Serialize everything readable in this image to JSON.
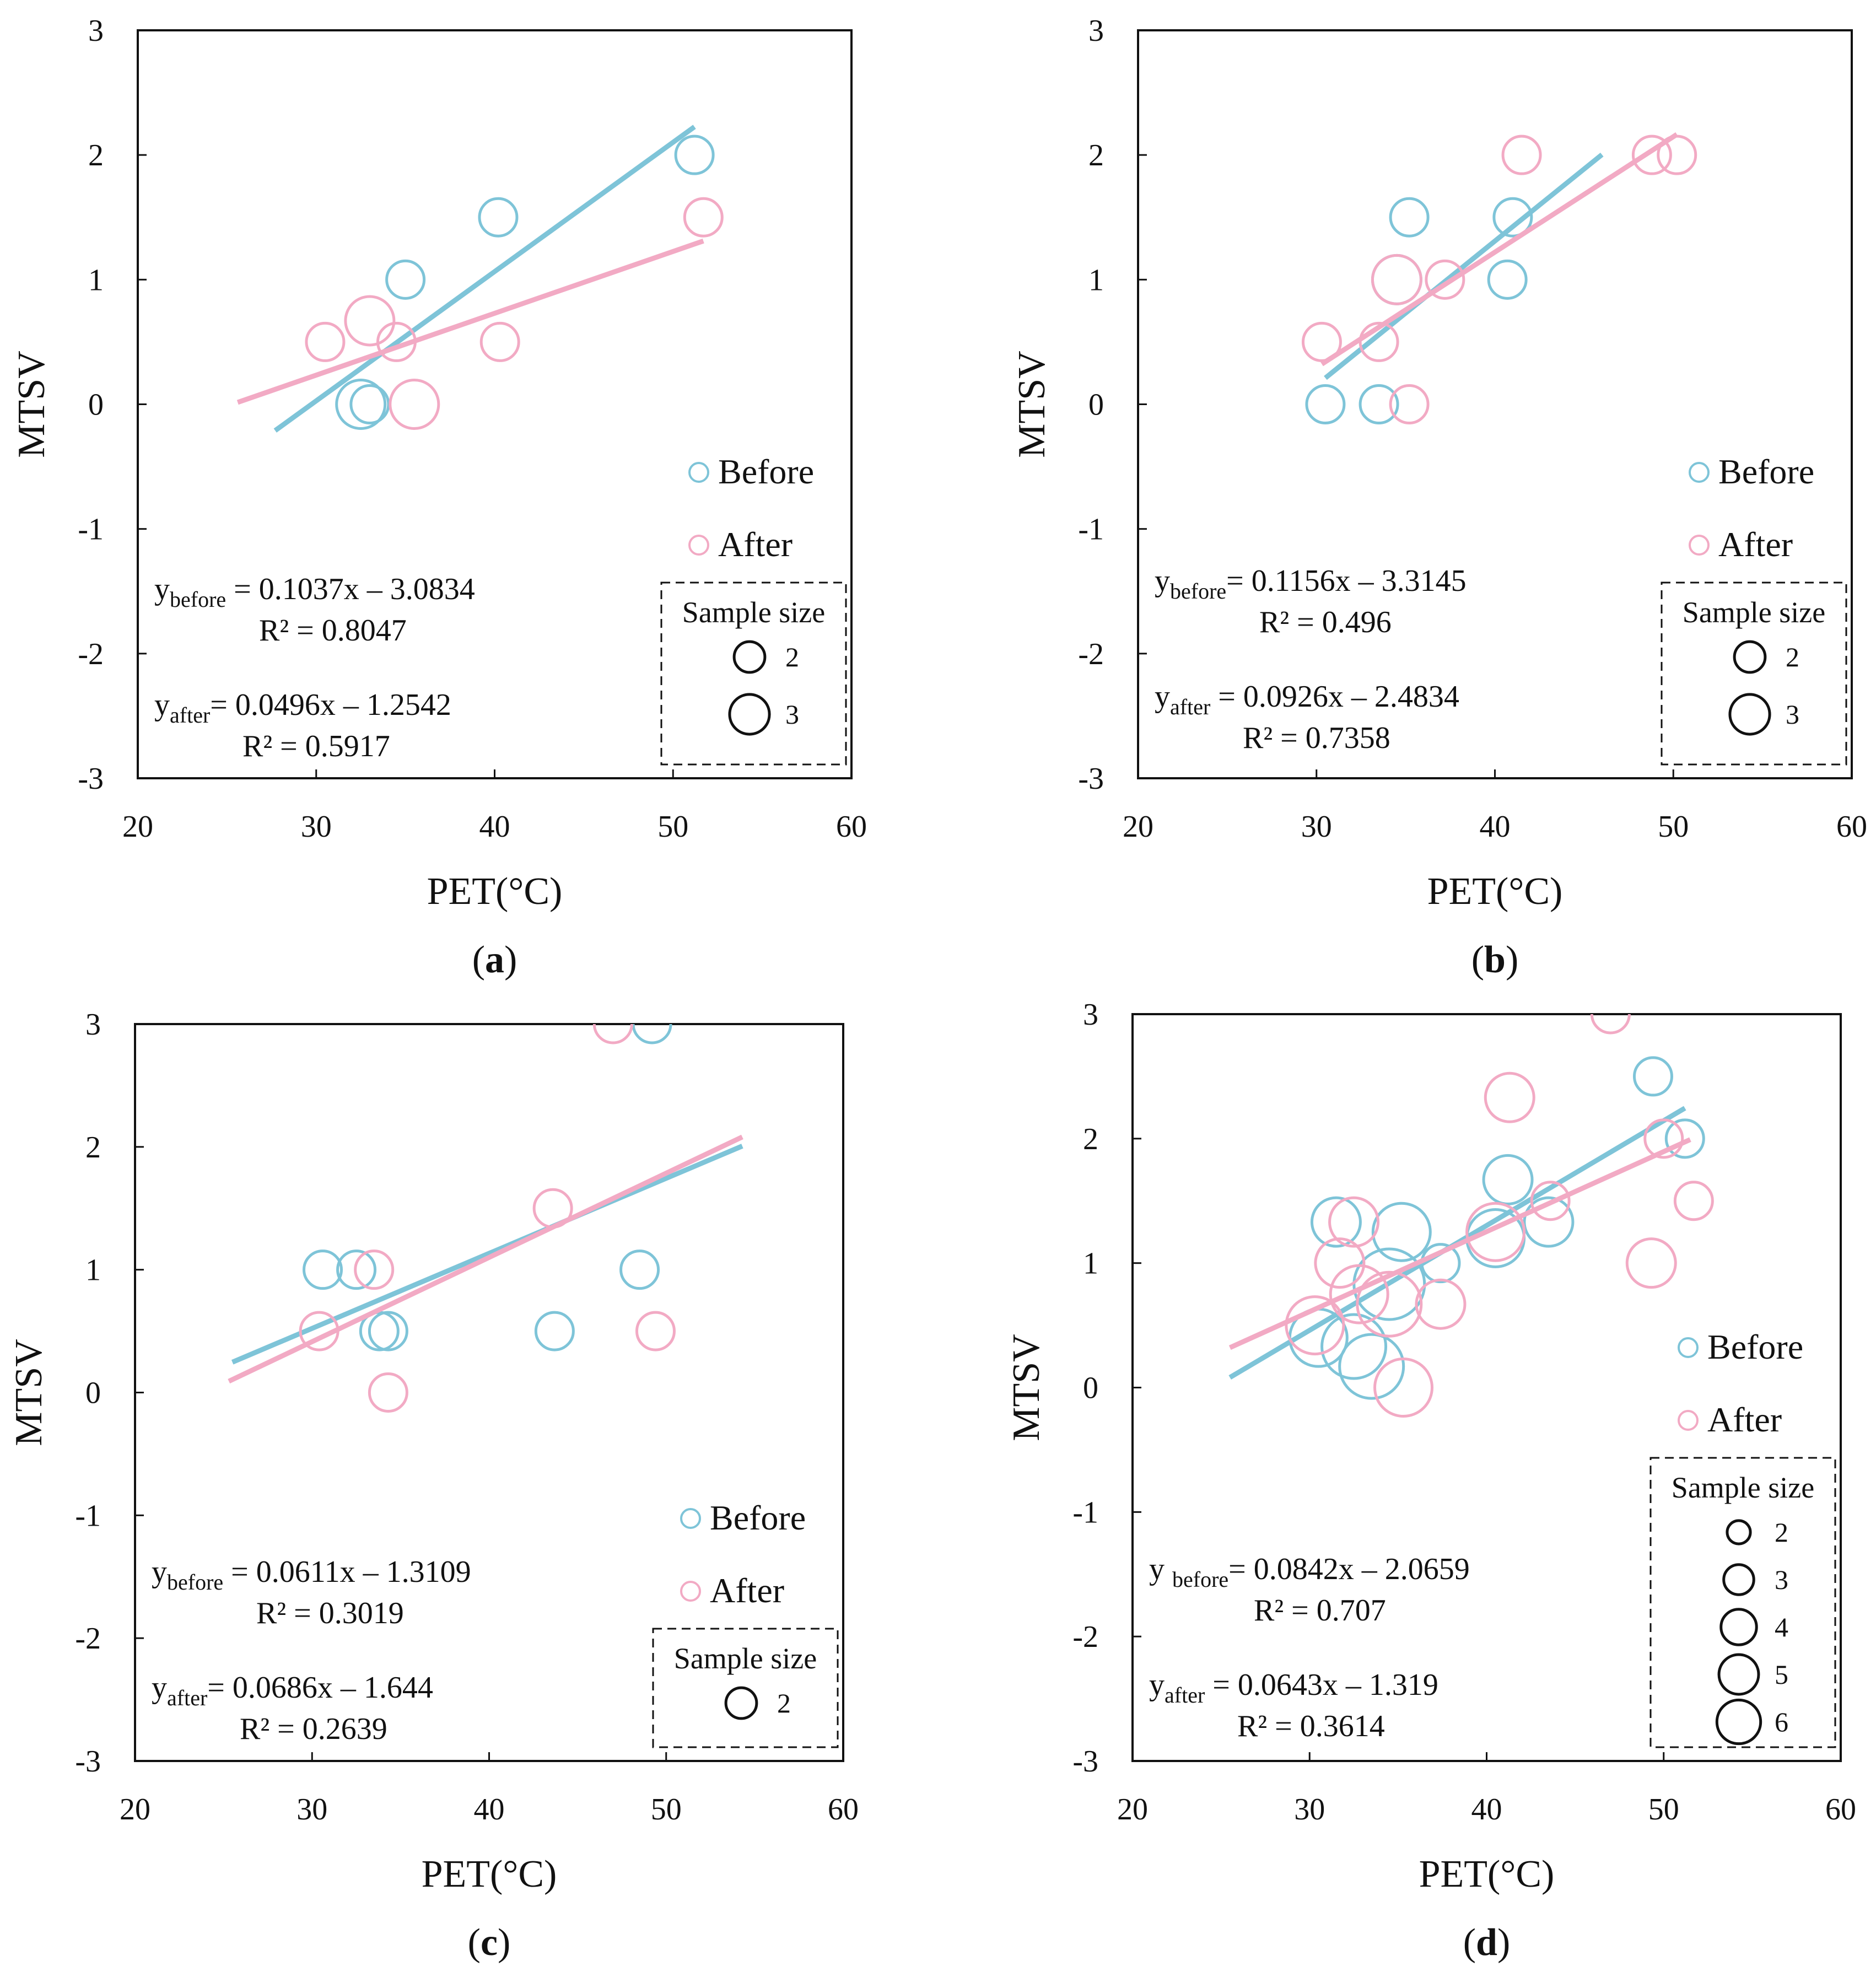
{
  "figure": {
    "panels": [
      {
        "id": "a",
        "label_open": "(",
        "label_letter": "a",
        "label_close": ")",
        "xlabel": "PET(°C)",
        "ylabel": "MTSV",
        "xlim": [
          20,
          60
        ],
        "ylim": [
          -3,
          3
        ],
        "xticks": [
          "20",
          "30",
          "40",
          "50",
          "60"
        ],
        "yticks": [
          "3",
          "2",
          "1",
          "0",
          "-1",
          "-2",
          "-3"
        ],
        "legend": {
          "before_label": "Before",
          "after_label": "After",
          "sample_size_title": "Sample size",
          "sizes": [
            "2",
            "3"
          ]
        },
        "equations": {
          "before_prefix": "y",
          "before_sub": "before",
          "before_rhs": " = 0.1037x – 3.0834",
          "before_r2": "R² = 0.8047",
          "after_prefix": "y",
          "after_sub": "after",
          "after_rhs": "= 0.0496x – 1.2542",
          "after_r2": "R² = 0.5917"
        }
      },
      {
        "id": "b",
        "label_open": "(",
        "label_letter": "b",
        "label_close": ")",
        "xlabel": "PET(°C)",
        "ylabel": "MTSV",
        "xlim": [
          20,
          60
        ],
        "ylim": [
          -3,
          3
        ],
        "xticks": [
          "20",
          "30",
          "40",
          "50",
          "60"
        ],
        "yticks": [
          "3",
          "2",
          "1",
          "0",
          "-1",
          "-2",
          "-3"
        ],
        "legend": {
          "before_label": "Before",
          "after_label": "After",
          "sample_size_title": "Sample size",
          "sizes": [
            "2",
            "3"
          ]
        },
        "equations": {
          "before_prefix": "y",
          "before_sub": "before",
          "before_rhs": "= 0.1156x – 3.3145",
          "before_r2": "R² = 0.496",
          "after_prefix": "y",
          "after_sub": "after",
          "after_rhs": " = 0.0926x – 2.4834",
          "after_r2": "R² = 0.7358"
        }
      },
      {
        "id": "c",
        "label_open": "(",
        "label_letter": "c",
        "label_close": ")",
        "xlabel": "PET(°C)",
        "ylabel": "MTSV",
        "xlim": [
          20,
          60
        ],
        "ylim": [
          -3,
          3
        ],
        "xticks": [
          "20",
          "30",
          "40",
          "50",
          "60"
        ],
        "yticks": [
          "3",
          "2",
          "1",
          "0",
          "-1",
          "-2",
          "-3"
        ],
        "legend": {
          "before_label": "Before",
          "after_label": "After",
          "sample_size_title": "Sample size",
          "sizes": [
            "2"
          ]
        },
        "equations": {
          "before_prefix": "y",
          "before_sub": "before",
          "before_rhs": " = 0.0611x – 1.3109",
          "before_r2": "R² = 0.3019",
          "after_prefix": "y",
          "after_sub": "after",
          "after_rhs": "= 0.0686x – 1.644",
          "after_r2": "R² = 0.2639"
        }
      },
      {
        "id": "d",
        "label_open": "(",
        "label_letter": "d",
        "label_close": ")",
        "xlabel": "PET(°C)",
        "ylabel": "MTSV",
        "xlim": [
          20,
          60
        ],
        "ylim": [
          -3,
          3
        ],
        "xticks": [
          "20",
          "30",
          "40",
          "50",
          "60"
        ],
        "yticks": [
          "3",
          "2",
          "1",
          "0",
          "-1",
          "-2",
          "-3"
        ],
        "legend": {
          "before_label": "Before",
          "after_label": "After",
          "sample_size_title": "Sample size",
          "sizes": [
            "2",
            "3",
            "4",
            "5",
            "6"
          ]
        },
        "equations": {
          "before_prefix": "y ",
          "before_sub": "before",
          "before_rhs": "= 0.0842x – 2.0659",
          "before_r2": "R² = 0.707",
          "after_prefix": "y",
          "after_sub": "after",
          "after_rhs": " = 0.0643x – 1.319",
          "after_r2": "R² = 0.3614"
        }
      }
    ],
    "colors": {
      "before": "#7ec4d8",
      "after": "#f2aac4",
      "axis": "#111111"
    }
  },
  "chart_data": [
    {
      "panel": "a",
      "type": "scatter",
      "xlabel": "PET(°C)",
      "ylabel": "MTSV",
      "xlim": [
        20,
        60
      ],
      "ylim": [
        -3,
        3
      ],
      "grid": false,
      "legend_position": "bottom-right",
      "series": [
        {
          "name": "Before",
          "color": "#7ec4d8",
          "points": [
            {
              "x": 32.5,
              "y": 0,
              "n": 3
            },
            {
              "x": 33.0,
              "y": 0,
              "n": 2
            },
            {
              "x": 35.0,
              "y": 1,
              "n": 2
            },
            {
              "x": 40.2,
              "y": 1.5,
              "n": 2
            },
            {
              "x": 51.2,
              "y": 2,
              "n": 2
            }
          ],
          "fit": {
            "slope": 0.1037,
            "intercept": -3.0834,
            "x_range": [
              27.7,
              51.2
            ]
          }
        },
        {
          "name": "After",
          "color": "#f2aac4",
          "points": [
            {
              "x": 30.5,
              "y": 0.5,
              "n": 2
            },
            {
              "x": 33.0,
              "y": 0.67,
              "n": 3
            },
            {
              "x": 34.5,
              "y": 0.5,
              "n": 2
            },
            {
              "x": 35.5,
              "y": 0,
              "n": 3
            },
            {
              "x": 40.3,
              "y": 0.5,
              "n": 2
            },
            {
              "x": 51.7,
              "y": 1.5,
              "n": 2
            }
          ],
          "fit": {
            "slope": 0.0496,
            "intercept": -1.2542,
            "x_range": [
              25.6,
              51.7
            ]
          }
        }
      ]
    },
    {
      "panel": "b",
      "type": "scatter",
      "xlabel": "PET(°C)",
      "ylabel": "MTSV",
      "xlim": [
        20,
        60
      ],
      "ylim": [
        -3,
        3
      ],
      "grid": false,
      "legend_position": "bottom-right",
      "series": [
        {
          "name": "Before",
          "color": "#7ec4d8",
          "points": [
            {
              "x": 30.5,
              "y": 0,
              "n": 2
            },
            {
              "x": 33.5,
              "y": 0,
              "n": 2
            },
            {
              "x": 35.2,
              "y": 1.5,
              "n": 2
            },
            {
              "x": 34.5,
              "y": 1,
              "n": 3
            },
            {
              "x": 40.7,
              "y": 1,
              "n": 2
            },
            {
              "x": 41.0,
              "y": 1.5,
              "n": 2
            }
          ],
          "fit": {
            "slope": 0.1156,
            "intercept": -3.3145,
            "x_range": [
              30.5,
              46.0
            ]
          }
        },
        {
          "name": "After",
          "color": "#f2aac4",
          "points": [
            {
              "x": 30.3,
              "y": 0.5,
              "n": 2
            },
            {
              "x": 33.5,
              "y": 0.5,
              "n": 2
            },
            {
              "x": 35.2,
              "y": 0,
              "n": 2
            },
            {
              "x": 34.5,
              "y": 1,
              "n": 3
            },
            {
              "x": 37.2,
              "y": 1,
              "n": 2
            },
            {
              "x": 41.5,
              "y": 2,
              "n": 2
            },
            {
              "x": 48.8,
              "y": 2,
              "n": 2
            },
            {
              "x": 50.2,
              "y": 2,
              "n": 2
            }
          ],
          "fit": {
            "slope": 0.0926,
            "intercept": -2.4834,
            "x_range": [
              30.3,
              50.2
            ]
          }
        }
      ]
    },
    {
      "panel": "c",
      "type": "scatter",
      "xlabel": "PET(°C)",
      "ylabel": "MTSV",
      "xlim": [
        20,
        60
      ],
      "ylim": [
        -3,
        3
      ],
      "grid": false,
      "legend_position": "bottom-right",
      "series": [
        {
          "name": "Before",
          "color": "#7ec4d8",
          "points": [
            {
              "x": 30.6,
              "y": 1,
              "n": 2
            },
            {
              "x": 32.5,
              "y": 1,
              "n": 2
            },
            {
              "x": 33.8,
              "y": 0.5,
              "n": 2
            },
            {
              "x": 34.3,
              "y": 0.5,
              "n": 2
            },
            {
              "x": 43.7,
              "y": 0.5,
              "n": 2
            },
            {
              "x": 48.5,
              "y": 1,
              "n": 2
            },
            {
              "x": 49.2,
              "y": 3,
              "n": 2
            }
          ],
          "fit": {
            "slope": 0.0611,
            "intercept": -1.3109,
            "x_range": [
              25.5,
              54.3
            ]
          }
        },
        {
          "name": "After",
          "color": "#f2aac4",
          "points": [
            {
              "x": 30.4,
              "y": 0.5,
              "n": 2
            },
            {
              "x": 33.5,
              "y": 1,
              "n": 2
            },
            {
              "x": 34.3,
              "y": 0,
              "n": 2
            },
            {
              "x": 43.6,
              "y": 1.5,
              "n": 2
            },
            {
              "x": 47.0,
              "y": 3,
              "n": 2
            },
            {
              "x": 49.4,
              "y": 0.5,
              "n": 2
            }
          ],
          "fit": {
            "slope": 0.0686,
            "intercept": -1.644,
            "x_range": [
              25.3,
              54.3
            ]
          }
        }
      ]
    },
    {
      "panel": "d",
      "type": "scatter",
      "xlabel": "PET(°C)",
      "ylabel": "MTSV",
      "xlim": [
        20,
        60
      ],
      "ylim": [
        -3,
        3
      ],
      "grid": false,
      "legend_position": "bottom-right",
      "series": [
        {
          "name": "Before",
          "color": "#7ec4d8",
          "points": [
            {
              "x": 30.5,
              "y": 0.4,
              "n": 4
            },
            {
              "x": 32.5,
              "y": 0.33,
              "n": 5
            },
            {
              "x": 33.5,
              "y": 0.17,
              "n": 5
            },
            {
              "x": 31.5,
              "y": 1.33,
              "n": 3
            },
            {
              "x": 34.5,
              "y": 0.83,
              "n": 6
            },
            {
              "x": 35.2,
              "y": 1.25,
              "n": 4
            },
            {
              "x": 37.4,
              "y": 1,
              "n": 2
            },
            {
              "x": 40.5,
              "y": 1.2,
              "n": 4
            },
            {
              "x": 41.2,
              "y": 1.67,
              "n": 3
            },
            {
              "x": 43.5,
              "y": 1.33,
              "n": 3
            },
            {
              "x": 49.4,
              "y": 2.5,
              "n": 2
            },
            {
              "x": 51.2,
              "y": 2,
              "n": 2
            }
          ],
          "fit": {
            "slope": 0.0842,
            "intercept": -2.0659,
            "x_range": [
              25.5,
              51.2
            ]
          }
        },
        {
          "name": "After",
          "color": "#f2aac4",
          "points": [
            {
              "x": 30.3,
              "y": 0.5,
              "n": 4
            },
            {
              "x": 31.7,
              "y": 1,
              "n": 3
            },
            {
              "x": 32.5,
              "y": 1.33,
              "n": 3
            },
            {
              "x": 32.8,
              "y": 0.75,
              "n": 4
            },
            {
              "x": 34.5,
              "y": 0.67,
              "n": 5
            },
            {
              "x": 35.3,
              "y": 0,
              "n": 4
            },
            {
              "x": 37.4,
              "y": 0.67,
              "n": 3
            },
            {
              "x": 40.5,
              "y": 1.25,
              "n": 4
            },
            {
              "x": 41.3,
              "y": 2.33,
              "n": 3
            },
            {
              "x": 43.6,
              "y": 1.5,
              "n": 2
            },
            {
              "x": 47.0,
              "y": 3,
              "n": 2
            },
            {
              "x": 49.3,
              "y": 1,
              "n": 3
            },
            {
              "x": 50.0,
              "y": 2,
              "n": 2
            },
            {
              "x": 51.7,
              "y": 1.5,
              "n": 2
            }
          ],
          "fit": {
            "slope": 0.0643,
            "intercept": -1.319,
            "x_range": [
              25.5,
              51.5
            ]
          }
        }
      ]
    }
  ]
}
